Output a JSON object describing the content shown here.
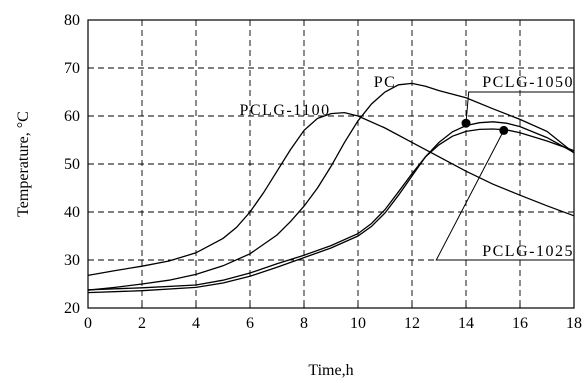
{
  "chart_data": {
    "type": "line",
    "xlabel": "Time,h",
    "ylabel": "Temperature, °C",
    "xlim": [
      0,
      18
    ],
    "ylim": [
      20,
      80
    ],
    "xticks": [
      0,
      2,
      4,
      6,
      8,
      10,
      12,
      14,
      16,
      18
    ],
    "yticks": [
      20,
      30,
      40,
      50,
      60,
      70,
      80
    ],
    "grid": true,
    "series": [
      {
        "name": "PCLG-1100",
        "x": [
          0,
          1,
          2,
          3,
          4,
          5,
          5.5,
          6,
          6.5,
          7,
          7.5,
          8,
          8.5,
          9,
          9.5,
          10,
          11,
          12,
          13,
          14,
          15,
          16,
          17,
          18
        ],
        "y": [
          26.8,
          27.8,
          28.7,
          29.8,
          31.5,
          34.5,
          36.8,
          40,
          44,
          48.5,
          53,
          57,
          59.5,
          60.5,
          60.7,
          60,
          57.5,
          54.5,
          51.5,
          48.5,
          45.8,
          43.5,
          41.3,
          39.2
        ]
      },
      {
        "name": "PC",
        "x": [
          0,
          1,
          2,
          3,
          4,
          5,
          6,
          7,
          7.5,
          8,
          8.5,
          9,
          9.5,
          10,
          10.5,
          11,
          11.5,
          12,
          12.5,
          13,
          14,
          15,
          16,
          17,
          18
        ],
        "y": [
          23.7,
          24.3,
          25,
          25.8,
          27,
          28.8,
          31.3,
          35.2,
          38,
          41.2,
          45,
          49.5,
          54.5,
          59,
          62.5,
          65,
          66.5,
          66.8,
          66.2,
          65.3,
          63.8,
          61.5,
          59.3,
          56.8,
          52.3
        ]
      },
      {
        "name": "PCLG-1050",
        "x": [
          0,
          2,
          4,
          5,
          6,
          7,
          8,
          9,
          10,
          10.5,
          11,
          11.5,
          12,
          12.5,
          13,
          13.5,
          14,
          14.5,
          15,
          15.5,
          16,
          17,
          18
        ],
        "y": [
          23.2,
          23.6,
          24.3,
          25.2,
          26.6,
          28.5,
          30.5,
          32.5,
          35,
          37,
          39.8,
          43.5,
          47.5,
          51.5,
          54.5,
          56.7,
          58,
          58.6,
          58.8,
          58.5,
          57.8,
          55.5,
          52.4
        ]
      },
      {
        "name": "PCLG-1025",
        "x": [
          0,
          2,
          4,
          5,
          6,
          7,
          8,
          9,
          10,
          10.5,
          11,
          11.5,
          12,
          12.5,
          13,
          13.5,
          14,
          14.5,
          15,
          15.5,
          16,
          17,
          18
        ],
        "y": [
          23.8,
          24.2,
          24.8,
          25.8,
          27.3,
          29.2,
          31,
          33,
          35.5,
          37.6,
          40.5,
          44.2,
          48,
          51.5,
          54,
          55.8,
          56.8,
          57.2,
          57.3,
          57.1,
          56.5,
          54.8,
          52.8
        ]
      }
    ],
    "markers": [
      {
        "series": "PCLG-1050",
        "x": 14.0,
        "y": 58.5
      },
      {
        "series": "PCLG-1025",
        "x": 15.4,
        "y": 57.0
      }
    ],
    "annotations": [
      {
        "text": "PCLG-1100",
        "x": 7.3,
        "y": 60.2
      },
      {
        "text": "PC",
        "x": 11.0,
        "y": 66.0
      },
      {
        "text": "PCLG-1050",
        "x": 16.3,
        "y": 66.0
      },
      {
        "text": "PCLG-1025",
        "x": 16.3,
        "y": 30.8
      }
    ]
  }
}
